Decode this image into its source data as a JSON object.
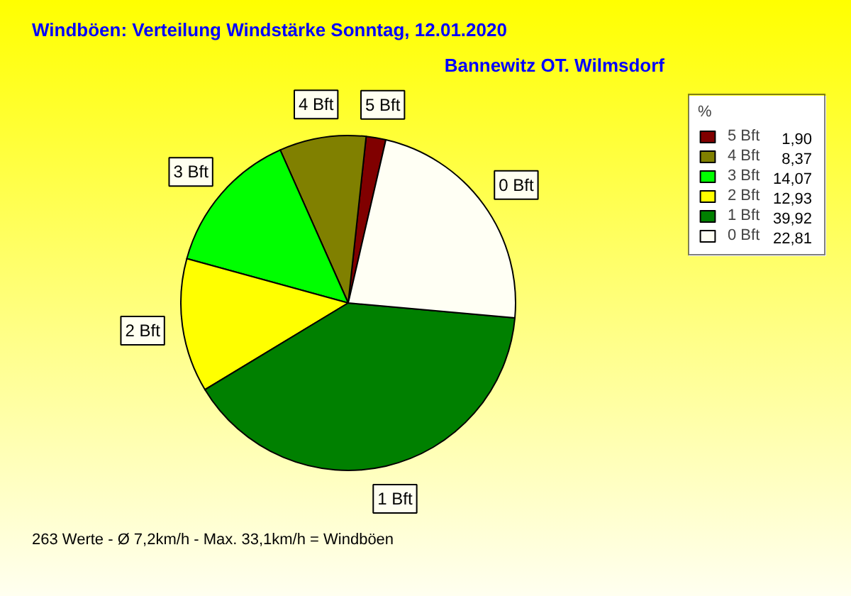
{
  "chart_data": {
    "type": "pie",
    "title": "Windböen: Verteilung Windstärke  Sonntag, 12.01.2020",
    "subtitle": "Bannewitz OT. Wilmsdorf",
    "categories": [
      "5 Bft",
      "4 Bft",
      "3 Bft",
      "2 Bft",
      "1 Bft",
      "0 Bft"
    ],
    "values": [
      1.9,
      8.37,
      14.07,
      12.93,
      39.92,
      22.81
    ],
    "value_labels": [
      "1,90",
      "8,37",
      "14,07",
      "12,93",
      "39,92",
      "22,81"
    ],
    "colors": [
      "#800000",
      "#808000",
      "#00ff00",
      "#ffff00",
      "#008000",
      "#fffff4"
    ],
    "legend_title": "%",
    "legend": "top right",
    "annotations": [
      "263 Werte   -   Ø 7,2km/h  -  Max. 33,1km/h = Windböen"
    ]
  }
}
